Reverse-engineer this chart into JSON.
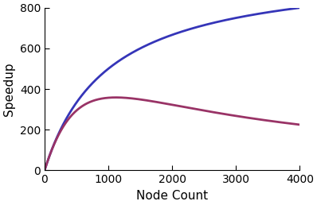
{
  "xlabel": "Node Count",
  "ylabel": "Speedup",
  "xlim": [
    0,
    4000
  ],
  "ylim": [
    0,
    800
  ],
  "xticks": [
    0,
    1000,
    2000,
    3000,
    4000
  ],
  "yticks": [
    0,
    200,
    400,
    600,
    800
  ],
  "amdahl_alpha": 0.001001,
  "typical_beta": 8e-07,
  "line_color_amdahl": "#3535b8",
  "line_color_typical": "#993366",
  "line_width": 2.0,
  "background_color": "#ffffff",
  "n_start": 1,
  "n_end": 4000,
  "n_points": 2000,
  "figsize": [
    3.98,
    2.58
  ],
  "dpi": 100
}
